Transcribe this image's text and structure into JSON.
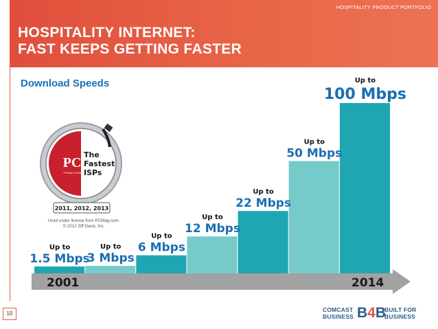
{
  "header": {
    "portfolio_label": "HOSPITALITY PRODUCT PORTFOLIO",
    "title_line1": "HOSPITALITY INTERNET:",
    "title_line2": "FAST KEEPS GETTING FASTER",
    "subtitle": "Download Speeds"
  },
  "badge": {
    "brand_text": "PC",
    "brand_sub": "PCMAG.COM",
    "claim_line1": "The",
    "claim_line2": "Fastest",
    "claim_line3": "ISPs",
    "years": "2011, 2012, 2013"
  },
  "credit": {
    "line1": "Used under license from PCMag.com.",
    "line2": "© 2012 Ziff Davis, Inc."
  },
  "page_number": "10",
  "logo": {
    "left_line1": "COMCAST",
    "left_line2": "BUSINESS",
    "mark_b1": "B",
    "mark_4": "4",
    "mark_b2": "B",
    "right_line1": "BUILT FOR",
    "right_line2": "BUSINESS"
  },
  "colors": {
    "header": "#e35a42",
    "bar_dark": "#1ea6b3",
    "bar_light": "#76cbca",
    "label_blue": "#1c6eb0",
    "timeline": "#a2a2a2"
  },
  "chart_data": {
    "type": "bar",
    "title": "Download Speeds",
    "xlabel": "",
    "ylabel": "",
    "prefix_label": "Up to",
    "categories": [
      "1.5 Mbps",
      "3 Mbps",
      "6 Mbps",
      "12 Mbps",
      "22 Mbps",
      "50 Mbps",
      "100 Mbps"
    ],
    "labels": [
      "1.5 Mbps",
      "3 Mbps",
      "6 Mbps",
      "12 Mbps",
      "22 Mbps",
      "50 Mbps",
      "100 Mbps"
    ],
    "values": [
      1.5,
      3,
      6,
      12,
      22,
      50,
      100
    ],
    "timeline_start": "2001",
    "timeline_end": "2014"
  }
}
